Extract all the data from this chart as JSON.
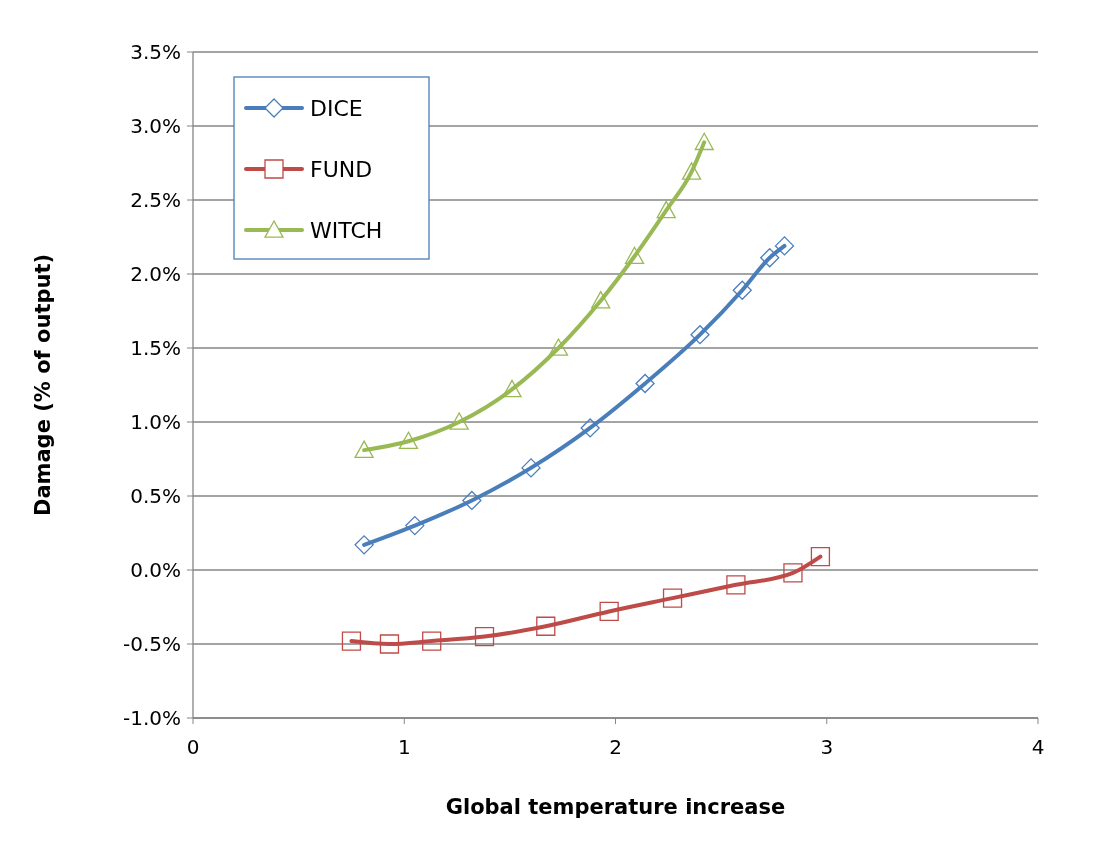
{
  "chart_data": {
    "type": "line",
    "xlabel": "Global  temperature increase",
    "ylabel": "Damage  (% of output)",
    "xlim": [
      0,
      4
    ],
    "xticks": [
      0,
      1,
      2,
      3,
      4
    ],
    "ylim": [
      -1.0,
      3.5
    ],
    "yticks": [
      {
        "value": -1.0,
        "label": "-1.0%"
      },
      {
        "value": -0.5,
        "label": "-0.5%"
      },
      {
        "value": 0,
        "label": "0.0%"
      },
      {
        "value": 0.5,
        "label": "0.5%"
      },
      {
        "value": 1.0,
        "label": "1.0%"
      },
      {
        "value": 1.5,
        "label": "1.5%"
      },
      {
        "value": 2.0,
        "label": "2.0%"
      },
      {
        "value": 2.5,
        "label": "2.5%"
      },
      {
        "value": 3.0,
        "label": "3.0%"
      },
      {
        "value": 3.5,
        "label": "3.5%"
      }
    ],
    "grid": "y",
    "legend": "top left",
    "line_style": "solid",
    "series": [
      {
        "name": "DICE",
        "color": "#4a7ebb",
        "marker": "diamond",
        "x": [
          0.81,
          1.05,
          1.32,
          1.6,
          1.88,
          2.14,
          2.4,
          2.6,
          2.73,
          2.8
        ],
        "values": [
          0.17,
          0.3,
          0.47,
          0.69,
          0.96,
          1.26,
          1.59,
          1.89,
          2.11,
          2.19
        ]
      },
      {
        "name": "FUND",
        "color": "#be4b48",
        "marker": "square",
        "x": [
          0.75,
          0.93,
          1.13,
          1.38,
          1.67,
          1.97,
          2.27,
          2.57,
          2.84,
          2.97
        ],
        "values": [
          -0.48,
          -0.5,
          -0.48,
          -0.45,
          -0.38,
          -0.28,
          -0.19,
          -0.1,
          -0.02,
          0.09
        ]
      },
      {
        "name": "WITCH",
        "color": "#98b954",
        "marker": "triangle",
        "x": [
          0.81,
          1.02,
          1.26,
          1.51,
          1.73,
          1.93,
          2.09,
          2.24,
          2.36,
          2.42
        ],
        "values": [
          0.81,
          0.87,
          1.0,
          1.22,
          1.5,
          1.82,
          2.12,
          2.43,
          2.69,
          2.89
        ]
      }
    ]
  }
}
